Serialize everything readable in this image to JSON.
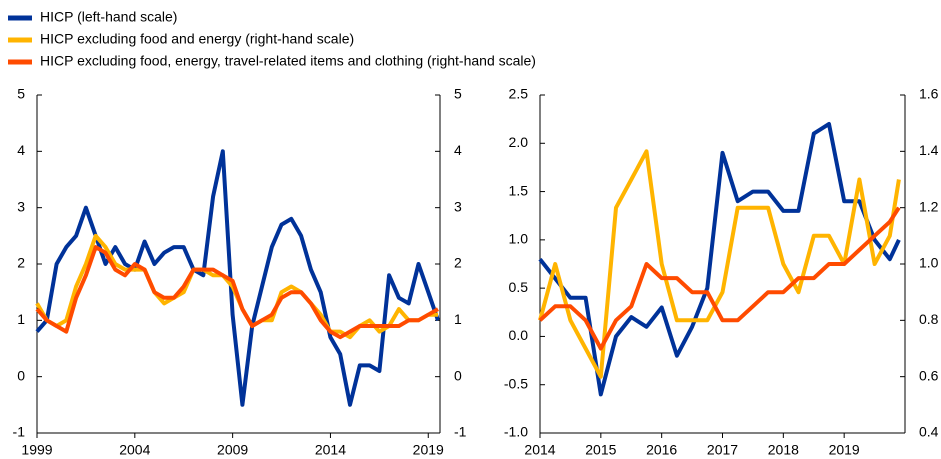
{
  "chart_data": [
    {
      "type": "line",
      "xlim": [
        1999,
        2019.6
      ],
      "xticks": [
        1999,
        2004,
        2009,
        2014,
        2019
      ],
      "ylim": [
        -1,
        5
      ],
      "yticks": [
        5,
        4,
        3,
        2,
        1,
        0,
        -1
      ],
      "y2lim": [
        -1,
        5
      ],
      "y2ticks": [
        5,
        4,
        3,
        2,
        1,
        0,
        -1
      ],
      "x": [
        1999,
        1999.5,
        2000,
        2000.5,
        2001,
        2001.5,
        2002,
        2002.5,
        2003,
        2003.5,
        2004,
        2004.5,
        2005,
        2005.5,
        2006,
        2006.5,
        2007,
        2007.5,
        2008,
        2008.5,
        2009,
        2009.5,
        2010,
        2010.5,
        2011,
        2011.5,
        2012,
        2012.5,
        2013,
        2013.5,
        2014,
        2014.5,
        2015,
        2015.5,
        2016,
        2016.5,
        2017,
        2017.5,
        2018,
        2018.5,
        2019,
        2019.5
      ],
      "series": [
        {
          "name": "HICP (left-hand scale)",
          "color": "#003299",
          "axis": "y",
          "values": [
            0.8,
            1.0,
            2.0,
            2.3,
            2.5,
            3.0,
            2.5,
            2.0,
            2.3,
            2.0,
            1.9,
            2.4,
            2.0,
            2.2,
            2.3,
            2.3,
            1.9,
            1.8,
            3.2,
            4.0,
            1.1,
            -0.5,
            0.9,
            1.6,
            2.3,
            2.7,
            2.8,
            2.5,
            1.9,
            1.5,
            0.7,
            0.4,
            -0.5,
            0.2,
            0.2,
            0.1,
            1.8,
            1.4,
            1.3,
            2.0,
            1.5,
            1.0
          ]
        },
        {
          "name": "HICP excluding food and energy (right-hand scale)",
          "color": "#ffb400",
          "axis": "y2",
          "values": [
            1.3,
            1.0,
            0.9,
            1.0,
            1.6,
            2.0,
            2.5,
            2.3,
            2.0,
            1.9,
            1.9,
            1.9,
            1.5,
            1.3,
            1.4,
            1.5,
            1.9,
            1.9,
            1.8,
            1.8,
            1.6,
            1.2,
            0.9,
            1.0,
            1.0,
            1.5,
            1.6,
            1.5,
            1.3,
            1.1,
            0.8,
            0.8,
            0.7,
            0.9,
            1.0,
            0.8,
            0.9,
            1.2,
            1.0,
            1.0,
            1.1,
            1.1
          ]
        },
        {
          "name": "HICP excluding food, energy, travel-related items and clothing (right-hand scale)",
          "color": "#ff4b00",
          "axis": "y2",
          "values": [
            1.2,
            1.0,
            0.9,
            0.8,
            1.4,
            1.8,
            2.3,
            2.2,
            1.9,
            1.8,
            2.0,
            1.9,
            1.5,
            1.4,
            1.4,
            1.6,
            1.9,
            1.9,
            1.9,
            1.8,
            1.7,
            1.2,
            0.9,
            1.0,
            1.1,
            1.4,
            1.5,
            1.5,
            1.3,
            1.0,
            0.8,
            0.7,
            0.8,
            0.9,
            0.9,
            0.9,
            0.9,
            0.9,
            1.0,
            1.0,
            1.1,
            1.2
          ]
        }
      ]
    },
    {
      "type": "line",
      "xlim": [
        2014,
        2020
      ],
      "xticks": [
        2014,
        2015,
        2016,
        2017,
        2018,
        2019
      ],
      "ylim": [
        -1,
        2.5
      ],
      "yticks": [
        2.5,
        {
          "value": 2,
          "label": "2.0"
        },
        1.5,
        {
          "value": 1,
          "label": "1.0"
        },
        0.5,
        {
          "value": 0,
          "label": "0.0"
        },
        -0.5,
        {
          "value": -1,
          "label": "-1.0"
        }
      ],
      "y2lim": [
        0.4,
        1.6
      ],
      "y2ticks": [
        1.6,
        1.4,
        1.2,
        {
          "value": 1,
          "label": "1.0"
        },
        0.8,
        0.6,
        0.4
      ],
      "x": [
        2014,
        2014.25,
        2014.5,
        2014.75,
        2015,
        2015.25,
        2015.5,
        2015.75,
        2016,
        2016.25,
        2016.5,
        2016.75,
        2017,
        2017.25,
        2017.5,
        2017.75,
        2018,
        2018.25,
        2018.5,
        2018.75,
        2019,
        2019.25,
        2019.5,
        2019.75,
        2019.9
      ],
      "series": [
        {
          "color": "#003299",
          "axis": "y",
          "values": [
            0.8,
            0.6,
            0.4,
            0.4,
            -0.6,
            0.0,
            0.2,
            0.1,
            0.3,
            -0.2,
            0.1,
            0.5,
            1.9,
            1.4,
            1.5,
            1.5,
            1.3,
            1.3,
            2.1,
            2.2,
            1.4,
            1.4,
            1.0,
            0.8,
            1.0
          ]
        },
        {
          "color": "#ffb400",
          "axis": "y2",
          "values": [
            0.8,
            1.0,
            0.8,
            0.7,
            0.6,
            1.2,
            1.3,
            1.4,
            1.0,
            0.8,
            0.8,
            0.8,
            0.9,
            1.2,
            1.2,
            1.2,
            1.0,
            0.9,
            1.1,
            1.1,
            1.0,
            1.3,
            1.0,
            1.1,
            1.3
          ]
        },
        {
          "color": "#ff4b00",
          "axis": "y2",
          "values": [
            0.8,
            0.85,
            0.85,
            0.8,
            0.7,
            0.8,
            0.85,
            1.0,
            0.95,
            0.95,
            0.9,
            0.9,
            0.8,
            0.8,
            0.85,
            0.9,
            0.9,
            0.95,
            0.95,
            1.0,
            1.0,
            1.05,
            1.1,
            1.15,
            1.2
          ]
        }
      ]
    }
  ]
}
